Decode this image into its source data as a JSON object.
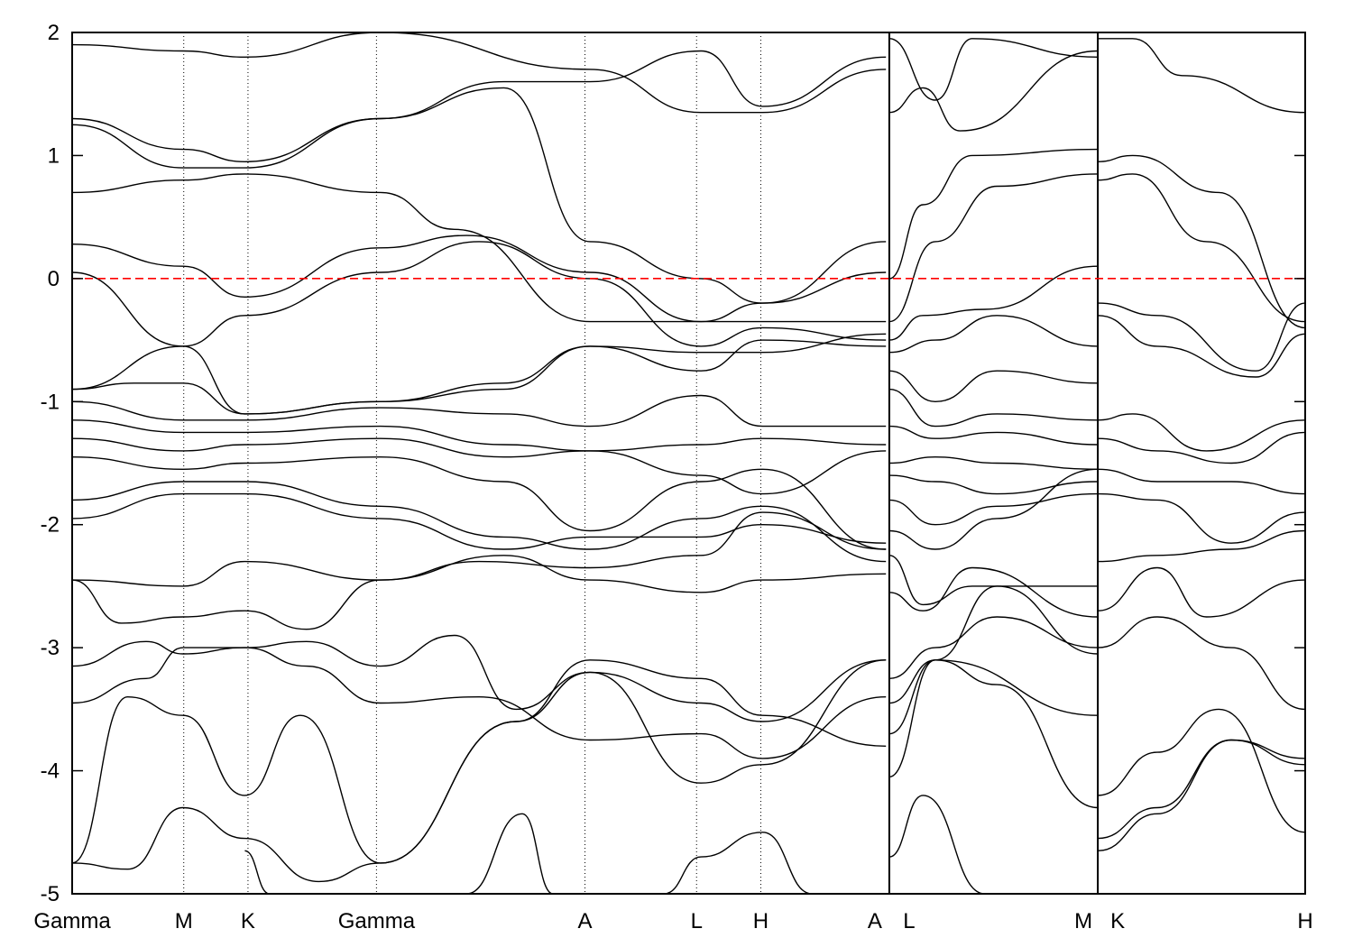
{
  "chart_data": {
    "type": "line",
    "title": "",
    "xlabel": "",
    "ylabel": "",
    "ylim": [
      -5,
      2
    ],
    "yticks": [
      {
        "value": -5,
        "label": "-5"
      },
      {
        "value": -4,
        "label": "-4"
      },
      {
        "value": -3,
        "label": "-3"
      },
      {
        "value": -2,
        "label": "-2"
      },
      {
        "value": -1,
        "label": "-1"
      },
      {
        "value": 0,
        "label": "0"
      },
      {
        "value": 1,
        "label": "1"
      },
      {
        "value": 2,
        "label": "2"
      }
    ],
    "xlim": [
      0,
      1.0
    ],
    "kpoints": [
      {
        "label": "Gamma",
        "x": 0.0
      },
      {
        "label": "M",
        "x": 0.0905
      },
      {
        "label": "K",
        "x": 0.1426
      },
      {
        "label": "Gamma",
        "x": 0.2468
      },
      {
        "label": "A",
        "x": 0.4159
      },
      {
        "label": "L",
        "x": 0.5064
      },
      {
        "label": "H",
        "x": 0.5585
      },
      {
        "label": "A",
        "x": 0.6627
      },
      {
        "label": "L",
        "x": 0.6627
      },
      {
        "label": "M",
        "x": 0.8318
      },
      {
        "label": "K",
        "x": 0.8318
      },
      {
        "label": "H",
        "x": 1.0
      }
    ],
    "vlines": [
      0.0905,
      0.1426,
      0.2468,
      0.4159,
      0.5064,
      0.5585
    ],
    "discontinuities": [
      0.6627,
      0.8318
    ],
    "fermi_level": {
      "value": 0,
      "color": "#ff0000",
      "style": "dashed"
    },
    "band_color": "#000000",
    "bands": [
      {
        "x": [
          0,
          0.09,
          0.14,
          0.25,
          0.42,
          0.51,
          0.56,
          0.66
        ],
        "y": [
          1.9,
          1.85,
          1.8,
          2.0,
          1.7,
          1.35,
          1.35,
          1.7
        ]
      },
      {
        "x": [
          0,
          0.09,
          0.14,
          0.25,
          0.35,
          0.42,
          0.51,
          0.56,
          0.66
        ],
        "y": [
          1.3,
          1.05,
          0.95,
          1.3,
          1.55,
          0.3,
          0.0,
          -0.2,
          0.3
        ]
      },
      {
        "x": [
          0,
          0.09,
          0.14,
          0.25,
          0.35,
          0.42,
          0.51,
          0.56,
          0.66
        ],
        "y": [
          1.25,
          0.9,
          0.9,
          1.3,
          1.6,
          1.6,
          1.85,
          1.4,
          1.8
        ]
      },
      {
        "x": [
          0,
          0.09,
          0.14,
          0.25,
          0.31,
          0.42,
          0.51,
          0.56,
          0.66
        ],
        "y": [
          0.7,
          0.8,
          0.85,
          0.7,
          0.4,
          -0.35,
          -0.35,
          -0.35,
          -0.35
        ]
      },
      {
        "x": [
          0,
          0.09,
          0.14,
          0.25,
          0.32,
          0.42,
          0.51,
          0.56,
          0.66
        ],
        "y": [
          0.28,
          0.1,
          -0.15,
          0.25,
          0.35,
          0.05,
          -0.35,
          -0.2,
          0.05
        ]
      },
      {
        "x": [
          0,
          0.09,
          0.14,
          0.25,
          0.33,
          0.42,
          0.51,
          0.56,
          0.66
        ],
        "y": [
          0.05,
          -0.55,
          -0.3,
          0.05,
          0.3,
          0.0,
          -0.55,
          -0.4,
          -0.5
        ]
      },
      {
        "x": [
          0,
          0.09,
          0.14,
          0.25,
          0.35,
          0.42,
          0.51,
          0.56,
          0.66
        ],
        "y": [
          -0.9,
          -0.55,
          -1.1,
          -1.0,
          -0.85,
          -0.55,
          -0.6,
          -0.6,
          -0.45
        ]
      },
      {
        "x": [
          0,
          0.05,
          0.09,
          0.14,
          0.25,
          0.35,
          0.42,
          0.51,
          0.56,
          0.66
        ],
        "y": [
          -0.9,
          -0.85,
          -0.85,
          -1.1,
          -1.0,
          -0.9,
          -0.55,
          -0.75,
          -0.5,
          -0.55
        ]
      },
      {
        "x": [
          0,
          0.09,
          0.14,
          0.25,
          0.35,
          0.42,
          0.51,
          0.56,
          0.66
        ],
        "y": [
          -1.0,
          -1.15,
          -1.15,
          -1.05,
          -1.1,
          -1.2,
          -0.95,
          -1.2,
          -1.2
        ]
      },
      {
        "x": [
          0,
          0.09,
          0.14,
          0.25,
          0.35,
          0.42,
          0.51,
          0.56,
          0.66
        ],
        "y": [
          -1.15,
          -1.25,
          -1.25,
          -1.2,
          -1.35,
          -1.4,
          -1.35,
          -1.3,
          -1.35
        ]
      },
      {
        "x": [
          0,
          0.09,
          0.14,
          0.25,
          0.35,
          0.42,
          0.51,
          0.56,
          0.66
        ],
        "y": [
          -1.3,
          -1.4,
          -1.35,
          -1.3,
          -1.45,
          -1.4,
          -1.6,
          -1.75,
          -1.4
        ]
      },
      {
        "x": [
          0,
          0.09,
          0.14,
          0.25,
          0.35,
          0.42,
          0.51,
          0.56,
          0.66
        ],
        "y": [
          -1.45,
          -1.55,
          -1.5,
          -1.45,
          -1.65,
          -2.05,
          -1.65,
          -1.55,
          -2.2
        ]
      },
      {
        "x": [
          0,
          0.09,
          0.14,
          0.25,
          0.35,
          0.42,
          0.51,
          0.56,
          0.66
        ],
        "y": [
          -1.8,
          -1.65,
          -1.65,
          -1.85,
          -2.1,
          -2.2,
          -1.95,
          -1.85,
          -2.3
        ]
      },
      {
        "x": [
          0,
          0.09,
          0.14,
          0.25,
          0.35,
          0.42,
          0.51,
          0.56,
          0.66
        ],
        "y": [
          -1.95,
          -1.75,
          -1.75,
          -1.95,
          -2.2,
          -2.1,
          -2.1,
          -2.0,
          -2.15
        ]
      },
      {
        "x": [
          0,
          0.09,
          0.14,
          0.25,
          0.35,
          0.42,
          0.51,
          0.56,
          0.66
        ],
        "y": [
          -2.45,
          -2.5,
          -2.3,
          -2.45,
          -2.25,
          -2.45,
          -2.55,
          -2.45,
          -2.4
        ]
      },
      {
        "x": [
          0,
          0.04,
          0.09,
          0.14,
          0.19,
          0.25,
          0.33,
          0.42,
          0.51,
          0.56,
          0.66
        ],
        "y": [
          -2.45,
          -2.8,
          -2.75,
          -2.7,
          -2.85,
          -2.45,
          -2.3,
          -2.35,
          -2.25,
          -1.9,
          -2.2
        ]
      },
      {
        "x": [
          0,
          0.06,
          0.09,
          0.14,
          0.19,
          0.25,
          0.31,
          0.36,
          0.42,
          0.51,
          0.56,
          0.66
        ],
        "y": [
          -3.15,
          -2.95,
          -3.05,
          -3.0,
          -2.95,
          -3.15,
          -2.9,
          -3.5,
          -3.2,
          -3.45,
          -3.6,
          -3.1
        ]
      },
      {
        "x": [
          0,
          0.06,
          0.09,
          0.14,
          0.19,
          0.25,
          0.33,
          0.42,
          0.51,
          0.56,
          0.66
        ],
        "y": [
          -3.45,
          -3.25,
          -3.0,
          -3.0,
          -3.15,
          -3.45,
          -3.4,
          -3.75,
          -3.7,
          -3.9,
          -3.4
        ]
      },
      {
        "x": [
          0,
          0.045,
          0.09,
          0.14,
          0.185,
          0.25,
          0.36,
          0.42,
          0.51,
          0.56,
          0.66
        ],
        "y": [
          -4.75,
          -3.4,
          -3.55,
          -4.2,
          -3.55,
          -4.75,
          -3.6,
          -3.1,
          -3.25,
          -3.55,
          -3.8
        ]
      },
      {
        "x": [
          0,
          0.045,
          0.09,
          0.14,
          0.2,
          0.25,
          0.36,
          0.42,
          0.51,
          0.56,
          0.66
        ],
        "y": [
          -4.75,
          -4.8,
          -4.3,
          -4.55,
          -4.9,
          -4.75,
          -3.6,
          -3.2,
          -4.1,
          -3.95,
          -3.1
        ]
      },
      {
        "x": [
          0.32,
          0.365,
          0.39
        ],
        "y": [
          -5.0,
          -4.35,
          -5.0
        ]
      },
      {
        "x": [
          0.48,
          0.51,
          0.56,
          0.6
        ],
        "y": [
          -5.0,
          -4.7,
          -4.5,
          -5.0
        ]
      },
      {
        "x": [
          0.14,
          0.16
        ],
        "y": [
          -4.65,
          -5.0
        ]
      },
      {
        "x": [
          0.6627,
          0.69,
          0.72,
          0.8318
        ],
        "y": [
          1.35,
          1.55,
          1.2,
          1.85
        ]
      },
      {
        "x": [
          0.6627,
          0.7,
          0.73,
          0.8318
        ],
        "y": [
          1.95,
          1.45,
          1.95,
          1.8
        ]
      },
      {
        "x": [
          0.6627,
          0.69,
          0.73,
          0.8318
        ],
        "y": [
          0.0,
          0.6,
          1.0,
          1.05
        ]
      },
      {
        "x": [
          0.6627,
          0.7,
          0.75,
          0.8318
        ],
        "y": [
          -0.35,
          0.3,
          0.75,
          0.85
        ]
      },
      {
        "x": [
          0.6627,
          0.69,
          0.74,
          0.8318
        ],
        "y": [
          -0.5,
          -0.3,
          -0.25,
          0.1
        ]
      },
      {
        "x": [
          0.6627,
          0.7,
          0.75,
          0.8318
        ],
        "y": [
          -0.6,
          -0.5,
          -0.3,
          -0.55
        ]
      },
      {
        "x": [
          0.6627,
          0.7,
          0.75,
          0.8318
        ],
        "y": [
          -0.75,
          -1.0,
          -0.75,
          -0.85
        ]
      },
      {
        "x": [
          0.6627,
          0.7,
          0.75,
          0.8318
        ],
        "y": [
          -0.9,
          -1.2,
          -1.1,
          -1.15
        ]
      },
      {
        "x": [
          0.6627,
          0.7,
          0.75,
          0.8318
        ],
        "y": [
          -1.2,
          -1.3,
          -1.25,
          -1.35
        ]
      },
      {
        "x": [
          0.6627,
          0.7,
          0.75,
          0.8318
        ],
        "y": [
          -1.5,
          -1.45,
          -1.5,
          -1.55
        ]
      },
      {
        "x": [
          0.6627,
          0.7,
          0.75,
          0.8318
        ],
        "y": [
          -1.6,
          -1.65,
          -1.75,
          -1.65
        ]
      },
      {
        "x": [
          0.6627,
          0.7,
          0.75,
          0.8318
        ],
        "y": [
          -1.8,
          -2.0,
          -1.85,
          -1.75
        ]
      },
      {
        "x": [
          0.6627,
          0.7,
          0.75,
          0.8318
        ],
        "y": [
          -2.05,
          -2.2,
          -1.95,
          -1.55
        ]
      },
      {
        "x": [
          0.6627,
          0.69,
          0.73,
          0.8318
        ],
        "y": [
          -2.25,
          -2.65,
          -2.5,
          -2.5
        ]
      },
      {
        "x": [
          0.6627,
          0.69,
          0.73,
          0.8318
        ],
        "y": [
          -2.55,
          -2.7,
          -2.35,
          -2.75
        ]
      },
      {
        "x": [
          0.6627,
          0.7,
          0.75,
          0.8318
        ],
        "y": [
          -3.25,
          -3.0,
          -2.75,
          -3.0
        ]
      },
      {
        "x": [
          0.6627,
          0.7,
          0.75,
          0.8318
        ],
        "y": [
          -3.45,
          -3.1,
          -2.5,
          -3.05
        ]
      },
      {
        "x": [
          0.6627,
          0.7,
          0.8318
        ],
        "y": [
          -3.7,
          -3.1,
          -3.55
        ]
      },
      {
        "x": [
          0.6627,
          0.7,
          0.75,
          0.8318
        ],
        "y": [
          -4.05,
          -3.1,
          -3.3,
          -4.3
        ]
      },
      {
        "x": [
          0.6627,
          0.69,
          0.74
        ],
        "y": [
          -4.7,
          -4.2,
          -5.0
        ]
      },
      {
        "x": [
          0.8318,
          0.86,
          0.9,
          1.0
        ],
        "y": [
          1.95,
          1.95,
          1.65,
          1.35
        ]
      },
      {
        "x": [
          0.8318,
          0.86,
          0.93,
          1.0
        ],
        "y": [
          0.95,
          1.0,
          0.7,
          -0.4
        ]
      },
      {
        "x": [
          0.8318,
          0.86,
          0.92,
          1.0
        ],
        "y": [
          0.8,
          0.85,
          0.3,
          -0.35
        ]
      },
      {
        "x": [
          0.8318,
          0.88,
          0.96,
          1.0
        ],
        "y": [
          -0.2,
          -0.3,
          -0.75,
          -0.2
        ]
      },
      {
        "x": [
          0.8318,
          0.88,
          0.96,
          1.0
        ],
        "y": [
          -0.3,
          -0.55,
          -0.8,
          -0.45
        ]
      },
      {
        "x": [
          0.8318,
          0.86,
          0.92,
          1.0
        ],
        "y": [
          -1.15,
          -1.1,
          -1.4,
          -1.15
        ]
      },
      {
        "x": [
          0.8318,
          0.88,
          0.94,
          1.0
        ],
        "y": [
          -1.3,
          -1.4,
          -1.5,
          -1.25
        ]
      },
      {
        "x": [
          0.8318,
          0.88,
          0.94,
          1.0
        ],
        "y": [
          -1.55,
          -1.65,
          -1.65,
          -1.75
        ]
      },
      {
        "x": [
          0.8318,
          0.88,
          0.94,
          1.0
        ],
        "y": [
          -1.75,
          -1.8,
          -2.15,
          -1.9
        ]
      },
      {
        "x": [
          0.8318,
          0.88,
          0.94,
          1.0
        ],
        "y": [
          -2.3,
          -2.25,
          -2.2,
          -2.05
        ]
      },
      {
        "x": [
          0.8318,
          0.88,
          0.92,
          1.0
        ],
        "y": [
          -2.7,
          -2.35,
          -2.75,
          -2.45
        ]
      },
      {
        "x": [
          0.8318,
          0.88,
          0.94,
          1.0
        ],
        "y": [
          -3.0,
          -2.75,
          -3.0,
          -3.5
        ]
      },
      {
        "x": [
          0.8318,
          0.88,
          0.93,
          1.0
        ],
        "y": [
          -4.2,
          -3.85,
          -3.5,
          -4.5
        ]
      },
      {
        "x": [
          0.8318,
          0.88,
          0.94,
          1.0
        ],
        "y": [
          -4.55,
          -4.3,
          -3.75,
          -3.9
        ]
      },
      {
        "x": [
          0.8318,
          0.88,
          0.94,
          1.0
        ],
        "y": [
          -4.65,
          -4.35,
          -3.75,
          -3.95
        ]
      }
    ]
  }
}
